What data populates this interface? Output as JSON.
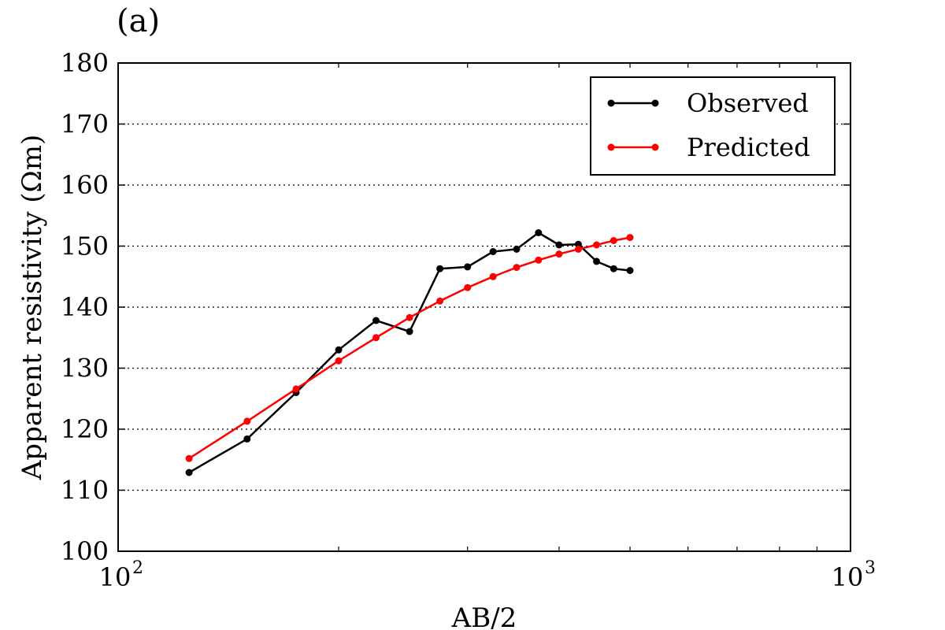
{
  "panel_label": "(a)",
  "chart_data": {
    "type": "line",
    "xlabel": "AB/2",
    "ylabel": "Apparent resistivity (Ωm)",
    "xscale": "log",
    "xlim": [
      100,
      1000
    ],
    "ylim": [
      100,
      180
    ],
    "yticks": [
      100,
      110,
      120,
      130,
      140,
      150,
      160,
      170,
      180
    ],
    "ytick_labels": [
      "100",
      "110",
      "120",
      "130",
      "140",
      "150",
      "160",
      "170",
      "180"
    ],
    "xticks": [
      100,
      1000
    ],
    "xtick_labels": [
      {
        "base": "10",
        "exp": "2"
      },
      {
        "base": "10",
        "exp": "3"
      }
    ],
    "grid": "horizontal dotted",
    "legend_position": "top-right",
    "series": [
      {
        "name": "Observed",
        "color": "#000000",
        "x": [
          125,
          150,
          175,
          200,
          225,
          250,
          275,
          300,
          325,
          350,
          375,
          400,
          425,
          450,
          475,
          500
        ],
        "y": [
          112.9,
          118.4,
          126.0,
          133.0,
          137.8,
          136.0,
          146.3,
          146.6,
          149.1,
          149.5,
          152.2,
          150.2,
          150.3,
          147.5,
          146.3,
          146.0
        ]
      },
      {
        "name": "Predicted",
        "color": "#ff0000",
        "x": [
          125,
          150,
          175,
          200,
          225,
          250,
          275,
          300,
          325,
          350,
          375,
          400,
          425,
          450,
          475,
          500
        ],
        "y": [
          115.2,
          121.3,
          126.6,
          131.2,
          135.0,
          138.3,
          141.0,
          143.2,
          145.0,
          146.5,
          147.7,
          148.7,
          149.5,
          150.2,
          150.9,
          151.4
        ]
      }
    ]
  }
}
